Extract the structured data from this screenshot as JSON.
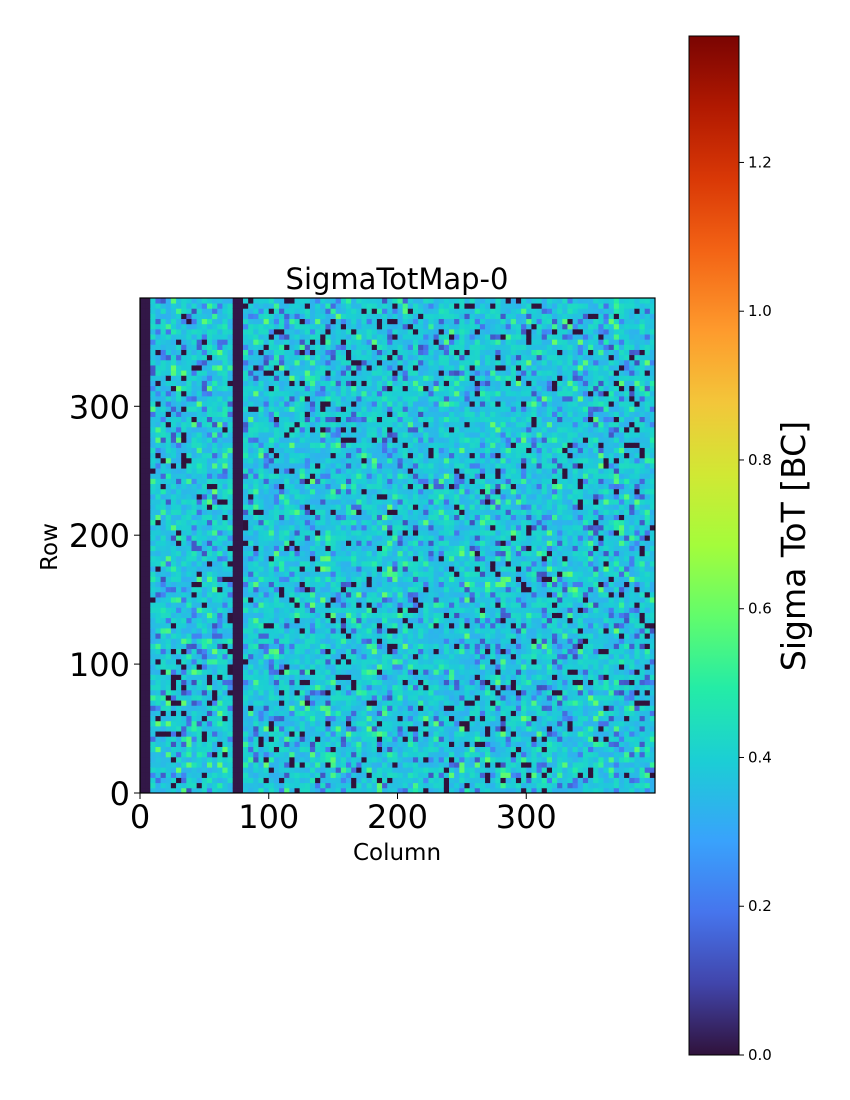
{
  "chart_data": {
    "type": "heatmap",
    "title": "SigmaTotMap-0",
    "xlabel": "Column",
    "ylabel": "Row",
    "xlim": [
      0,
      400
    ],
    "ylim": [
      0,
      384
    ],
    "x_ticks": [
      0,
      100,
      200,
      300
    ],
    "y_ticks": [
      0,
      100,
      200,
      300
    ],
    "x_tick_labels": [
      "0",
      "100",
      "200",
      "300"
    ],
    "y_tick_labels": [
      "0",
      "100",
      "200",
      "300"
    ],
    "dead_column_ranges": [
      [
        0,
        8
      ],
      [
        72,
        80
      ]
    ],
    "typical_value": 0.38,
    "colorbar": {
      "label": "Sigma ToT [BC]",
      "colormap": "turbo",
      "vmin": 0.0,
      "vmax": 1.37,
      "ticks": [
        0.0,
        0.2,
        0.4,
        0.6,
        0.8,
        1.0,
        1.2
      ],
      "tick_labels": [
        "0.0",
        "0.2",
        "0.4",
        "0.6",
        "0.8",
        "1.0",
        "1.2"
      ]
    }
  }
}
